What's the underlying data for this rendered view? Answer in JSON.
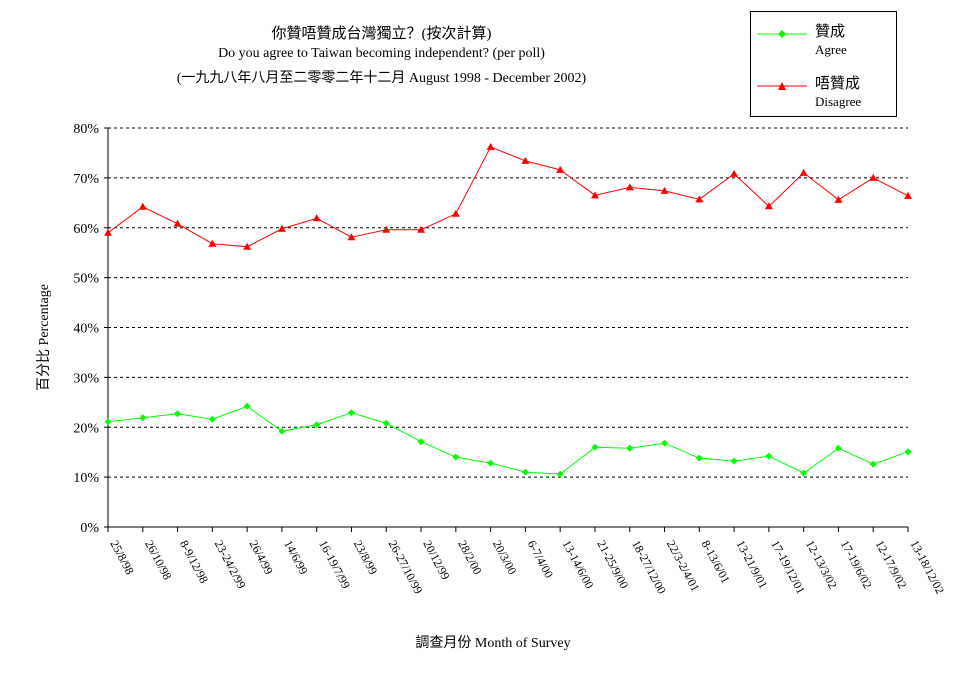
{
  "chart_data": {
    "type": "line",
    "title": "你贊唔贊成台灣獨立？(按次計算)",
    "subtitle": "Do you agree to Taiwan becoming independent? (per poll)",
    "subtitle2": "(一九九八年八月至二零零二年十二月 August 1998 - December 2002)",
    "xlabel": "調查月份 Month of Survey",
    "ylabel": "百分比 Percentage",
    "ylim": [
      0,
      80
    ],
    "yticks": [
      "0%",
      "10%",
      "20%",
      "30%",
      "40%",
      "50%",
      "60%",
      "70%",
      "80%"
    ],
    "ytick_values": [
      0,
      10,
      20,
      30,
      40,
      50,
      60,
      70,
      80
    ],
    "grid": "horizontal-dashed",
    "legend_position": "top-right",
    "categories": [
      "25/8/98",
      "26/10/98",
      "8-9/12/98",
      "23-24/2/99",
      "26/4/99",
      "14/6/99",
      "16-19/7/99",
      "23/8/99",
      "26-27/10/99",
      "20/12/99",
      "28/2/00",
      "20/3/00",
      "6-7/4/00",
      "13-14/6/00",
      "21-25/9/00",
      "18-27/12/00",
      "22/3-2/4/01",
      "8-13/6/01",
      "13-21/9/01",
      "17-19/12/01",
      "12-13/3/02",
      "17-19/6/02",
      "12-17/9/02",
      "13-18/12/02"
    ],
    "series": [
      {
        "name": "贊成",
        "name_en": "Agree",
        "color": "#00ff00",
        "marker": "diamond",
        "values": [
          21.1,
          21.9,
          22.7,
          21.6,
          24.2,
          19.2,
          20.5,
          22.9,
          20.8,
          17.1,
          14.0,
          12.8,
          11.0,
          10.6,
          16.0,
          15.8,
          16.8,
          13.8,
          13.2,
          14.2,
          10.8,
          15.8,
          12.6,
          15.1
        ]
      },
      {
        "name": "唔贊成",
        "name_en": "Disagree",
        "color": "#ff0000",
        "marker": "triangle",
        "values": [
          59.0,
          64.2,
          60.8,
          56.8,
          56.2,
          59.8,
          61.9,
          58.1,
          59.6,
          59.6,
          62.8,
          76.2,
          73.4,
          71.6,
          66.5,
          68.1,
          67.4,
          65.7,
          70.8,
          64.3,
          71.0,
          65.6,
          70.0,
          66.4
        ]
      }
    ]
  }
}
